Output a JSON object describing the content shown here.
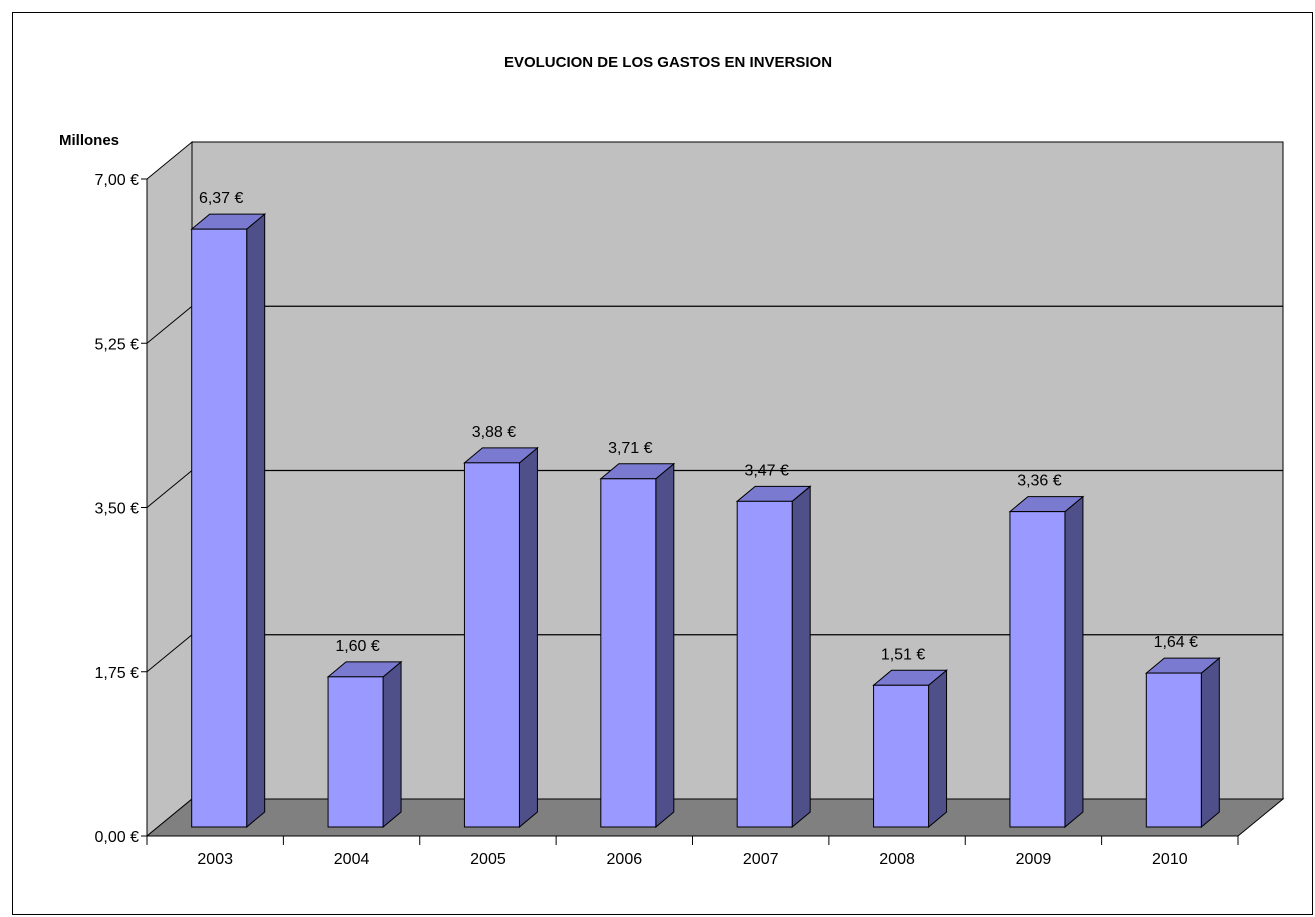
{
  "chart_data": {
    "type": "bar",
    "title": "EVOLUCION DE LOS GASTOS EN INVERSION",
    "ylabel": "Millones",
    "xlabel": "",
    "categories": [
      "2003",
      "2004",
      "2005",
      "2006",
      "2007",
      "2008",
      "2009",
      "2010"
    ],
    "values": [
      6.37,
      1.6,
      3.88,
      3.71,
      3.47,
      1.51,
      3.36,
      1.64
    ],
    "data_labels": [
      "6,37 €",
      "1,60 €",
      "3,88 €",
      "3,71 €",
      "3,47 €",
      "1,51 €",
      "3,36 €",
      "1,64 €"
    ],
    "ylim": [
      0,
      7
    ],
    "yticks": [
      0,
      1.75,
      3.5,
      5.25,
      7
    ],
    "ytick_labels": [
      "0,00 €",
      "1,75 €",
      "3,50 €",
      "5,25 €",
      "7,00 €"
    ],
    "grid": true,
    "legend": "none",
    "style": "3d-column",
    "colors": {
      "bar_front": "#9999ff",
      "bar_side": "#4f4f8a",
      "bar_top": "#7a7ad0",
      "wall": "#c0c0c0",
      "floor": "#808080"
    }
  }
}
